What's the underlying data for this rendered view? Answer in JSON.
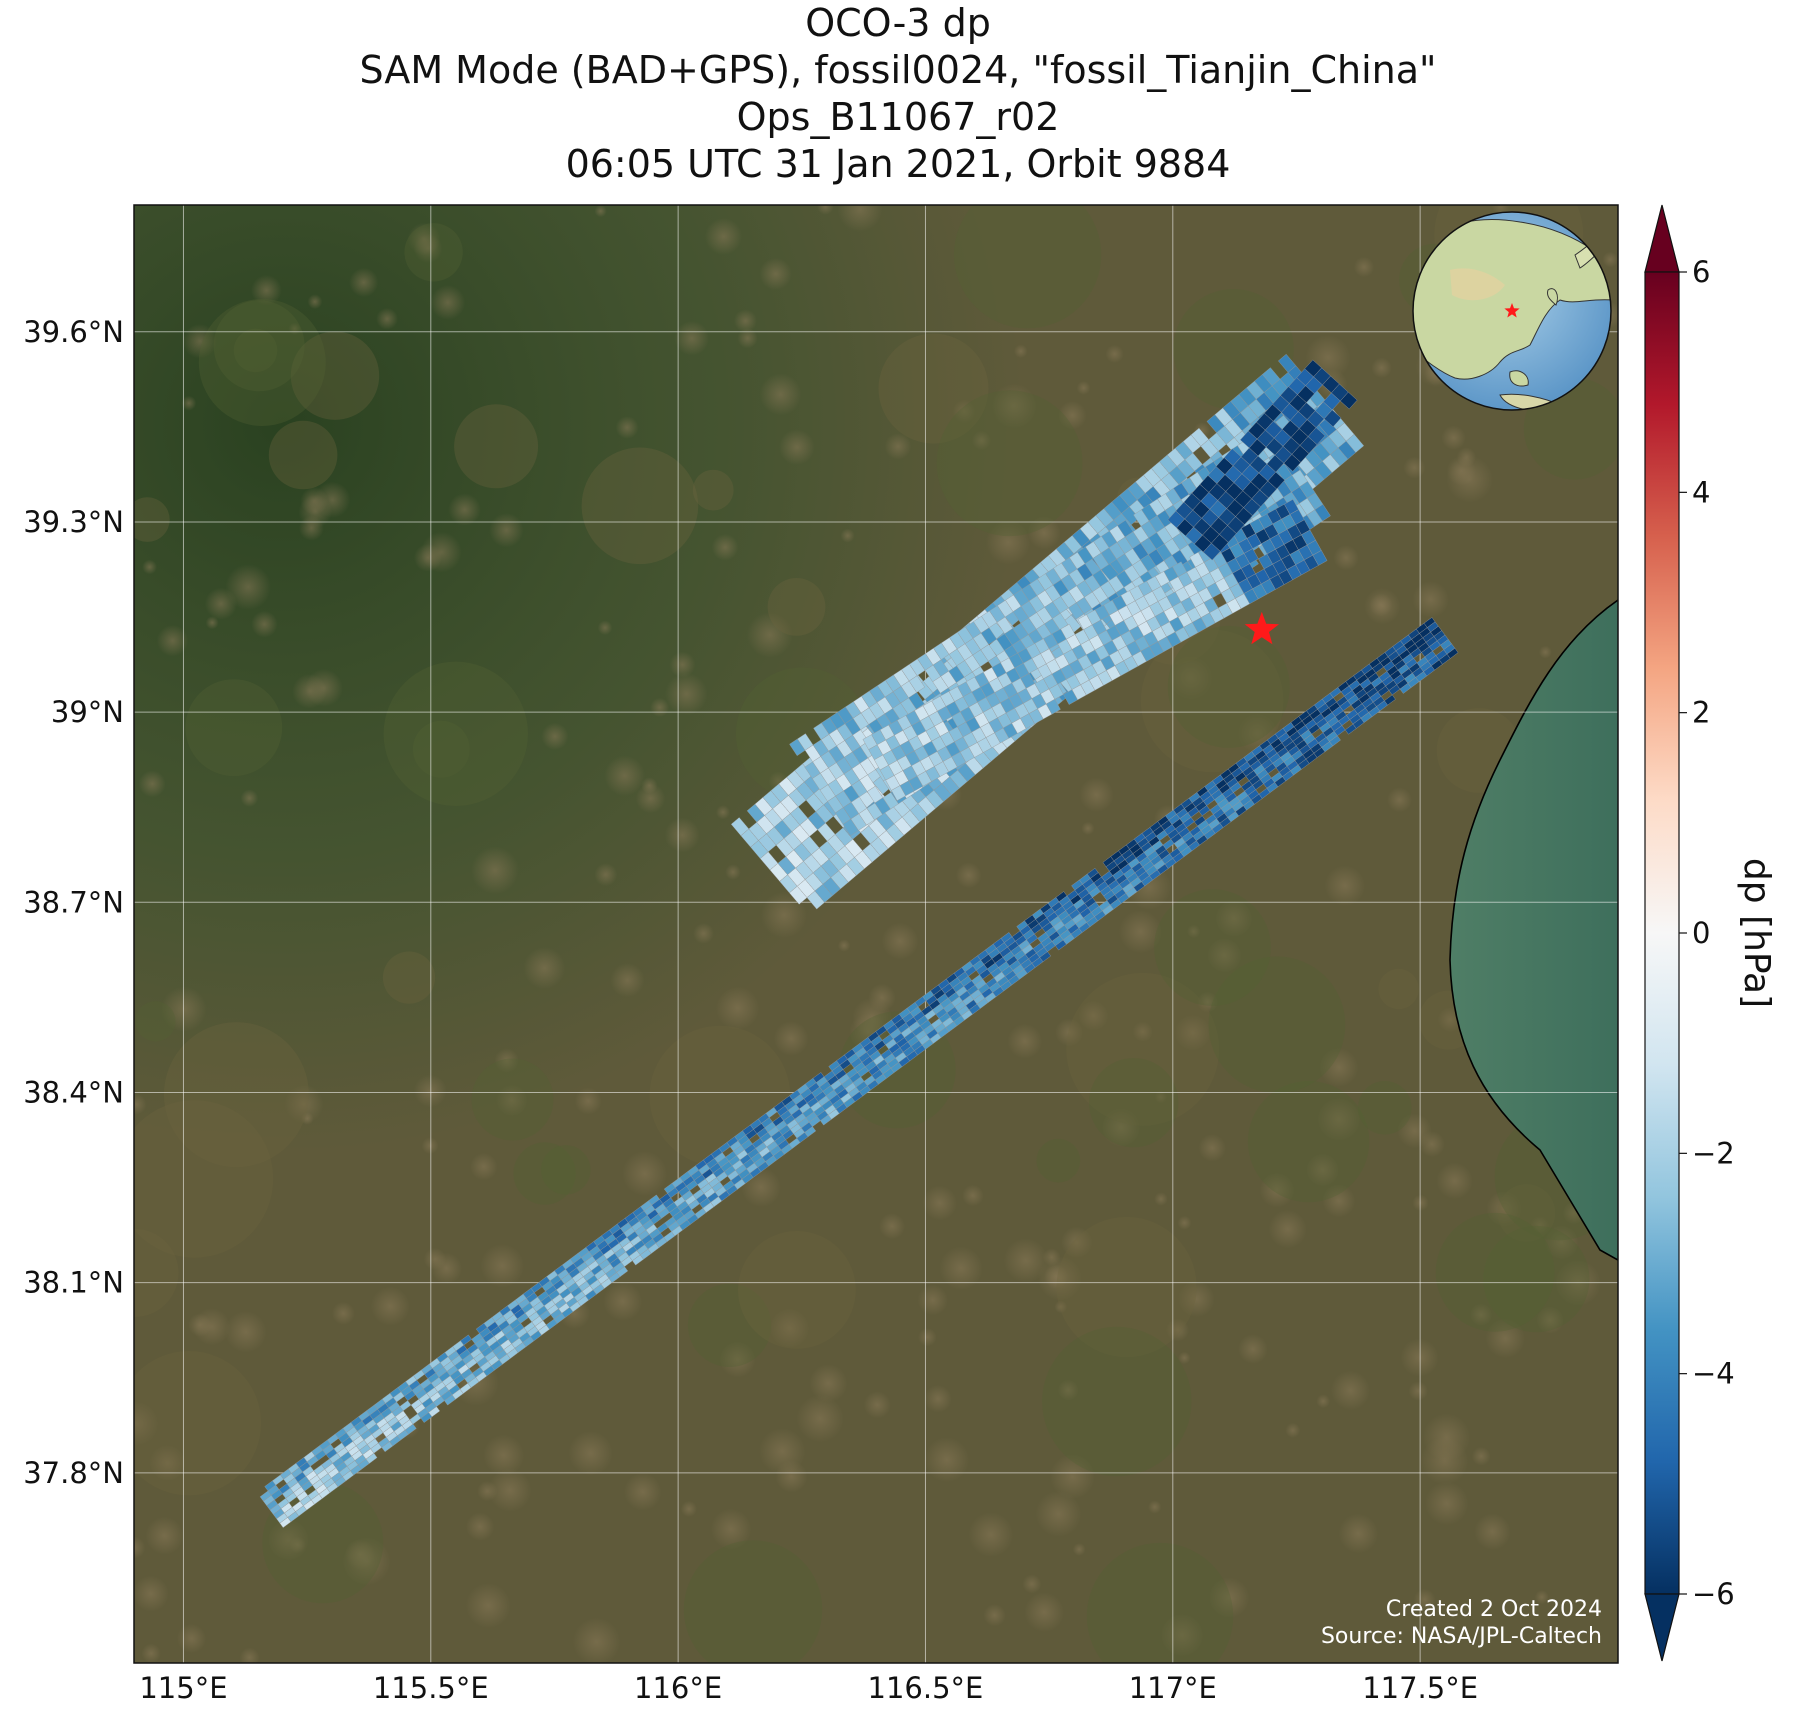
{
  "title": {
    "line1": "OCO-3 dp",
    "line2": "SAM Mode (BAD+GPS), fossil0024, \"fossil_Tianjin_China\"",
    "line3": "Ops_B11067_r02",
    "line4": "06:05 UTC 31 Jan 2021, Orbit 9884"
  },
  "map": {
    "lon_range": [
      114.9,
      117.9
    ],
    "lat_range": [
      37.5,
      39.8
    ],
    "lon_ticks": [
      {
        "value": 115.0,
        "label": "115°E"
      },
      {
        "value": 115.5,
        "label": "115.5°E"
      },
      {
        "value": 116.0,
        "label": "116°E"
      },
      {
        "value": 116.5,
        "label": "116.5°E"
      },
      {
        "value": 117.0,
        "label": "117°E"
      },
      {
        "value": 117.5,
        "label": "117.5°E"
      }
    ],
    "lat_ticks": [
      {
        "value": 37.8,
        "label": "37.8°N"
      },
      {
        "value": 38.1,
        "label": "38.1°N"
      },
      {
        "value": 38.4,
        "label": "38.4°N"
      },
      {
        "value": 38.7,
        "label": "38.7°N"
      },
      {
        "value": 39.0,
        "label": "39°N"
      },
      {
        "value": 39.3,
        "label": "39.3°N"
      },
      {
        "value": 39.6,
        "label": "39.6°N"
      }
    ],
    "target_lon": 117.18,
    "target_lat": 39.13,
    "target_color": "#ff1a1a",
    "credit_line1": "Created 2 Oct 2024",
    "credit_line2": "Source: NASA/JPL-Caltech"
  },
  "colorbar": {
    "label": "dp [hPa]",
    "range": [
      -6,
      6
    ],
    "ticks": [
      {
        "value": 6,
        "label": "6"
      },
      {
        "value": 4,
        "label": "4"
      },
      {
        "value": 2,
        "label": "2"
      },
      {
        "value": 0,
        "label": "0"
      },
      {
        "value": -2,
        "label": "−2"
      },
      {
        "value": -4,
        "label": "−4"
      },
      {
        "value": -6,
        "label": "−6"
      }
    ],
    "colormap": "RdBu_r"
  }
}
